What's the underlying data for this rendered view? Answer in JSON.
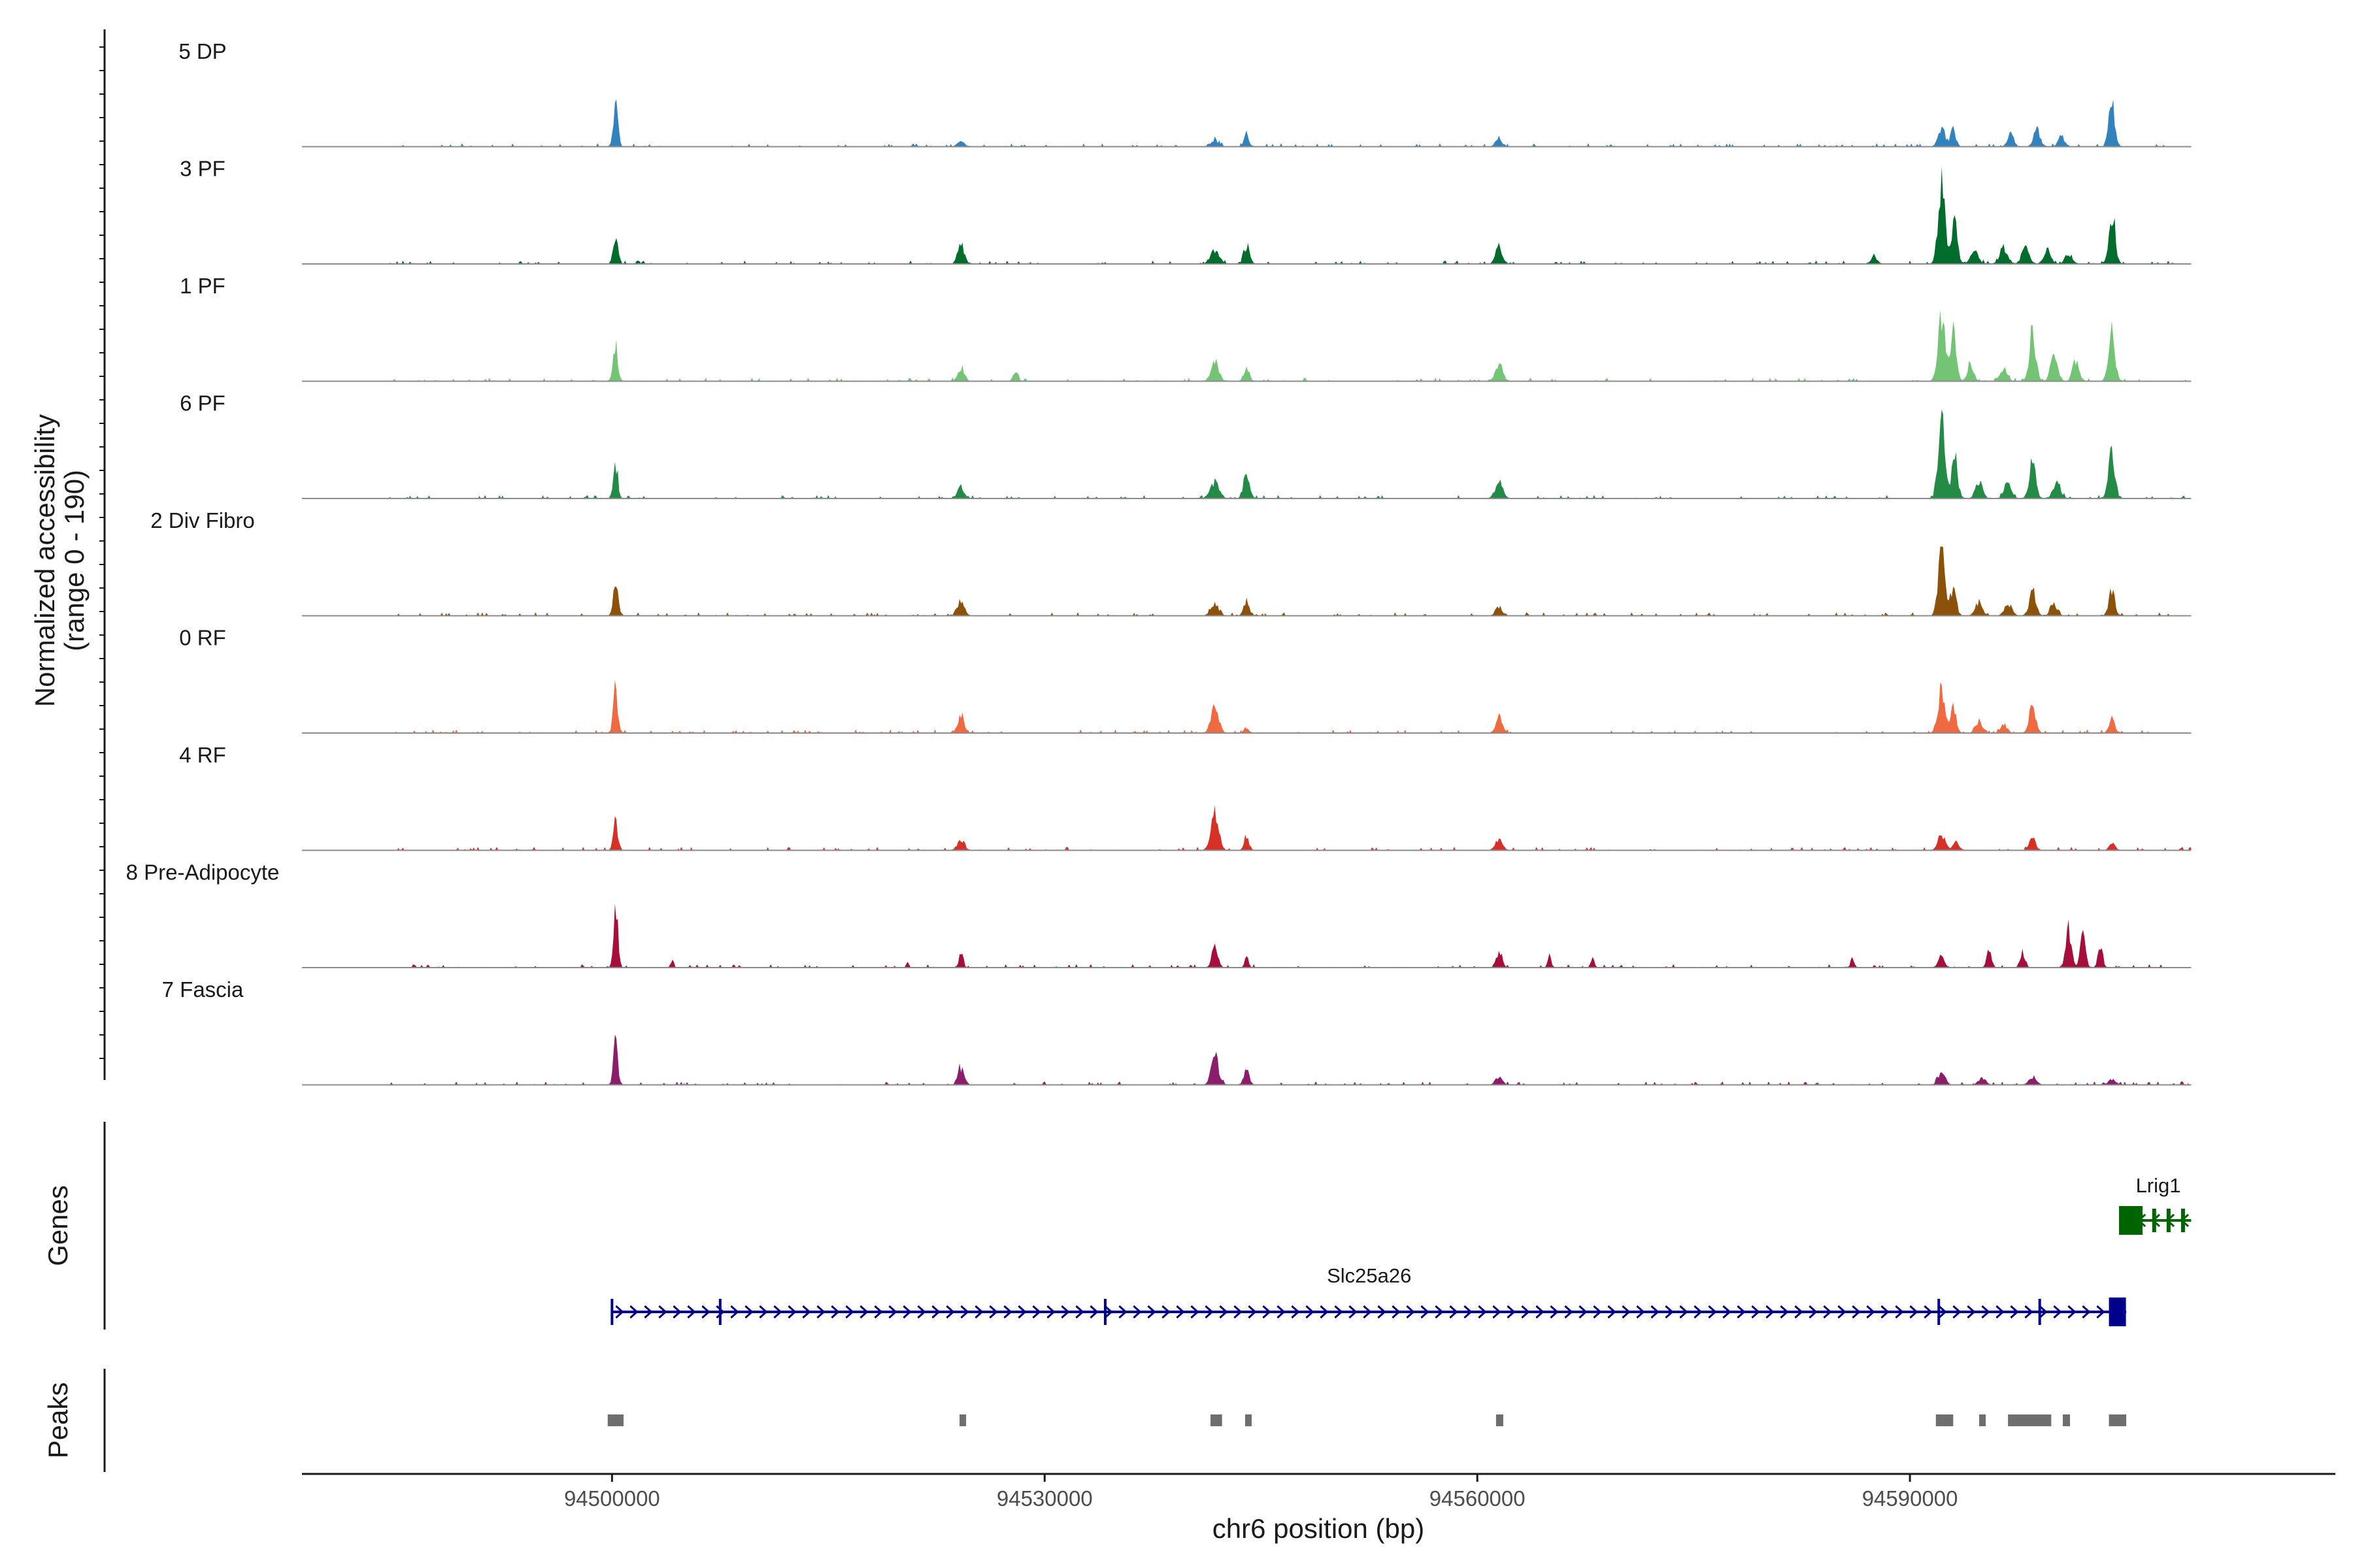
{
  "chart_data": {
    "type": "area",
    "title": "",
    "ylabel": "Normalized accessibility",
    "ylabel_range": "(range 0 - 190)",
    "y_range": [
      0,
      190
    ],
    "xlabel": "chr6 position (bp)",
    "x_range": [
      94478500,
      94619500
    ],
    "x_ticks": [
      94500000,
      94530000,
      94560000,
      94590000
    ],
    "x_tick_labels": [
      "94500000",
      "94530000",
      "94560000",
      "94590000"
    ],
    "tracks": [
      {
        "name": "5 DP",
        "color": "#3182bd",
        "peaks": [
          [
            94500250,
            95,
            160
          ],
          [
            94524200,
            12,
            220
          ],
          [
            94541800,
            14,
            260
          ],
          [
            94544000,
            25,
            180
          ],
          [
            94561500,
            18,
            220
          ],
          [
            94592200,
            45,
            220
          ],
          [
            94593000,
            35,
            180
          ],
          [
            94597000,
            28,
            200
          ],
          [
            94598800,
            35,
            220
          ],
          [
            94600500,
            22,
            200
          ],
          [
            94604000,
            100,
            200
          ]
        ]
      },
      {
        "name": "3 PF",
        "color": "#006d2c",
        "peaks": [
          [
            94500250,
            60,
            160
          ],
          [
            94524200,
            45,
            220
          ],
          [
            94541800,
            30,
            300
          ],
          [
            94544000,
            40,
            200
          ],
          [
            94561500,
            35,
            240
          ],
          [
            94587500,
            18,
            200
          ],
          [
            94592200,
            175,
            240
          ],
          [
            94593100,
            95,
            200
          ],
          [
            94594500,
            30,
            260
          ],
          [
            94596500,
            35,
            260
          ],
          [
            94598000,
            40,
            240
          ],
          [
            94599500,
            30,
            240
          ],
          [
            94601000,
            22,
            240
          ],
          [
            94604000,
            110,
            220
          ]
        ]
      },
      {
        "name": "1 PF",
        "color": "#74c476",
        "peaks": [
          [
            94500250,
            75,
            160
          ],
          [
            94524200,
            30,
            220
          ],
          [
            94528000,
            22,
            160
          ],
          [
            94541800,
            45,
            260
          ],
          [
            94544000,
            30,
            180
          ],
          [
            94561500,
            40,
            240
          ],
          [
            94592200,
            145,
            240
          ],
          [
            94593000,
            110,
            200
          ],
          [
            94594200,
            40,
            200
          ],
          [
            94596500,
            25,
            260
          ],
          [
            94598500,
            105,
            220
          ],
          [
            94600000,
            60,
            240
          ],
          [
            94601500,
            45,
            220
          ],
          [
            94604000,
            105,
            220
          ]
        ]
      },
      {
        "name": "6 PF",
        "color": "#238b45",
        "peaks": [
          [
            94500250,
            70,
            160
          ],
          [
            94524200,
            25,
            220
          ],
          [
            94541800,
            35,
            300
          ],
          [
            94544000,
            55,
            200
          ],
          [
            94561500,
            35,
            260
          ],
          [
            94592200,
            155,
            240
          ],
          [
            94593100,
            100,
            200
          ],
          [
            94594800,
            35,
            240
          ],
          [
            94596800,
            35,
            240
          ],
          [
            94598500,
            80,
            220
          ],
          [
            94600200,
            40,
            240
          ],
          [
            94604000,
            95,
            220
          ]
        ]
      },
      {
        "name": "2 Div Fibro",
        "color": "#8c510a",
        "peaks": [
          [
            94500250,
            80,
            160
          ],
          [
            94524200,
            35,
            220
          ],
          [
            94541800,
            25,
            260
          ],
          [
            94544000,
            35,
            180
          ],
          [
            94561500,
            18,
            220
          ],
          [
            94592200,
            130,
            240
          ],
          [
            94593000,
            60,
            200
          ],
          [
            94594800,
            30,
            240
          ],
          [
            94596800,
            25,
            240
          ],
          [
            94598500,
            55,
            220
          ],
          [
            94600000,
            25,
            240
          ],
          [
            94604000,
            60,
            200
          ]
        ]
      },
      {
        "name": "0 RF",
        "color": "#ef6a40",
        "peaks": [
          [
            94500250,
            90,
            160
          ],
          [
            94524200,
            35,
            220
          ],
          [
            94541800,
            55,
            260
          ],
          [
            94544000,
            12,
            160
          ],
          [
            94561500,
            35,
            220
          ],
          [
            94592200,
            95,
            240
          ],
          [
            94593000,
            55,
            200
          ],
          [
            94594800,
            25,
            240
          ],
          [
            94596500,
            20,
            220
          ],
          [
            94598500,
            55,
            220
          ],
          [
            94604000,
            30,
            200
          ]
        ]
      },
      {
        "name": "4 RF",
        "color": "#d73027",
        "peaks": [
          [
            94500250,
            60,
            160
          ],
          [
            94524200,
            25,
            220
          ],
          [
            94541800,
            80,
            260
          ],
          [
            94544000,
            25,
            180
          ],
          [
            94561500,
            25,
            220
          ],
          [
            94592200,
            35,
            240
          ],
          [
            94593200,
            20,
            200
          ],
          [
            94598500,
            25,
            220
          ],
          [
            94604000,
            15,
            200
          ]
        ]
      },
      {
        "name": "8 Pre-Adipocyte",
        "color": "#a50f3a",
        "peaks": [
          [
            94500250,
            150,
            140
          ],
          [
            94504200,
            22,
            80
          ],
          [
            94520500,
            12,
            80
          ],
          [
            94524200,
            30,
            140
          ],
          [
            94541800,
            45,
            200
          ],
          [
            94544000,
            25,
            120
          ],
          [
            94561500,
            35,
            200
          ],
          [
            94565000,
            25,
            120
          ],
          [
            94568000,
            20,
            120
          ],
          [
            94586000,
            20,
            120
          ],
          [
            94592200,
            25,
            200
          ],
          [
            94595500,
            40,
            160
          ],
          [
            94597800,
            35,
            160
          ],
          [
            94601000,
            85,
            200
          ],
          [
            94602000,
            75,
            180
          ],
          [
            94603200,
            40,
            160
          ]
        ]
      },
      {
        "name": "7 Fascia",
        "color": "#8c1d6a",
        "peaks": [
          [
            94500250,
            90,
            160
          ],
          [
            94524200,
            35,
            220
          ],
          [
            94541800,
            60,
            260
          ],
          [
            94544000,
            35,
            180
          ],
          [
            94561500,
            18,
            220
          ],
          [
            94592200,
            30,
            240
          ],
          [
            94595000,
            15,
            240
          ],
          [
            94598500,
            18,
            240
          ],
          [
            94604000,
            12,
            220
          ]
        ]
      }
    ],
    "genes_label": "Genes",
    "genes": [
      {
        "name": "Lrig1",
        "start": 94604500,
        "end": 94609500,
        "strand": "-",
        "color": "#006400",
        "row": 0
      },
      {
        "name": "Slc25a26",
        "start": 94500000,
        "end": 94605000,
        "strand": "+",
        "color": "#00008b",
        "row": 1
      }
    ],
    "peaks_label": "Peaks",
    "peak_regions": [
      [
        94499700,
        94500800
      ],
      [
        94524100,
        94524500
      ],
      [
        94541500,
        94542300
      ],
      [
        94543900,
        94544300
      ],
      [
        94561300,
        94561800
      ],
      [
        94591800,
        94593000
      ],
      [
        94594800,
        94595200
      ],
      [
        94596800,
        94599800
      ],
      [
        94600600,
        94601100
      ],
      [
        94603800,
        94605000
      ]
    ]
  }
}
